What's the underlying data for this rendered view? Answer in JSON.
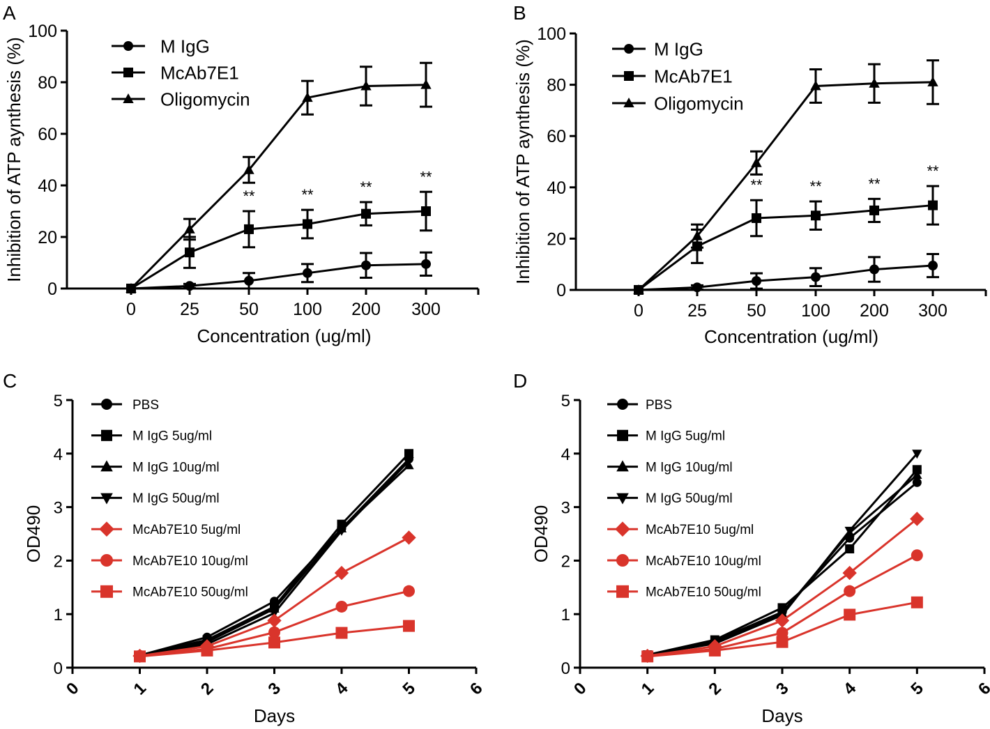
{
  "chart_data": [
    {
      "panel": "A",
      "type": "line",
      "xlabel": "Concentration (ug/ml)",
      "ylabel": "Inhibition of ATP aynthesis (%)",
      "ylim": [
        0,
        100
      ],
      "yticks": [
        0,
        20,
        40,
        60,
        80,
        100
      ],
      "categories": [
        "0",
        "25",
        "50",
        "100",
        "200",
        "300"
      ],
      "legend_position": "top-left",
      "grid": false,
      "series": [
        {
          "name": "M IgG",
          "marker": "circle",
          "color": "#000000",
          "values": [
            0,
            1,
            3,
            6,
            9,
            9.5
          ],
          "errors": [
            0,
            0.8,
            3,
            3.5,
            4.8,
            4.5
          ]
        },
        {
          "name": "McAb7E1",
          "marker": "square",
          "color": "#000000",
          "values": [
            0,
            14,
            23,
            25,
            29,
            30
          ],
          "errors": [
            0,
            6,
            7,
            5.5,
            4.5,
            7.5
          ]
        },
        {
          "name": "Oligomycin",
          "marker": "triangle",
          "color": "#000000",
          "values": [
            0,
            23,
            46,
            74,
            78.5,
            79
          ],
          "errors": [
            0,
            4,
            5,
            6.5,
            7.5,
            8.5
          ]
        }
      ],
      "annotations": [
        {
          "text": "**",
          "category": "50"
        },
        {
          "text": "**",
          "category": "100"
        },
        {
          "text": "**",
          "category": "200"
        },
        {
          "text": "**",
          "category": "300"
        }
      ]
    },
    {
      "panel": "B",
      "type": "line",
      "xlabel": "Concentration (ug/ml)",
      "ylabel": "Inhibition of ATP aynthesis (%)",
      "ylim": [
        0,
        100
      ],
      "yticks": [
        0,
        20,
        40,
        60,
        80,
        100
      ],
      "categories": [
        "0",
        "25",
        "50",
        "100",
        "200",
        "300"
      ],
      "legend_position": "top-left",
      "grid": false,
      "series": [
        {
          "name": "M IgG",
          "marker": "circle",
          "color": "#000000",
          "values": [
            0,
            1,
            3.5,
            5,
            8,
            9.5
          ],
          "errors": [
            0,
            0.8,
            3,
            3.5,
            4.8,
            4.5
          ]
        },
        {
          "name": "McAb7E1",
          "marker": "square",
          "color": "#000000",
          "values": [
            0,
            17,
            28,
            29,
            31,
            33
          ],
          "errors": [
            0,
            6.5,
            7,
            5.5,
            4.5,
            7.5
          ]
        },
        {
          "name": "Oligomycin",
          "marker": "triangle",
          "color": "#000000",
          "values": [
            0,
            21,
            49.5,
            79.5,
            80.5,
            81
          ],
          "errors": [
            0,
            4.5,
            4.5,
            6.5,
            7.5,
            8.5
          ]
        }
      ],
      "annotations": [
        {
          "text": "**",
          "category": "50"
        },
        {
          "text": "**",
          "category": "100"
        },
        {
          "text": "**",
          "category": "200"
        },
        {
          "text": "**",
          "category": "300"
        }
      ]
    },
    {
      "panel": "C",
      "type": "line",
      "xlabel": "Days",
      "ylabel": "OD490",
      "xlim": [
        0,
        6
      ],
      "ylim": [
        0,
        5
      ],
      "xticks": [
        0,
        1,
        2,
        3,
        4,
        5,
        6
      ],
      "yticks": [
        0,
        1,
        2,
        3,
        4,
        5
      ],
      "legend_position": "top-left",
      "grid": false,
      "series": [
        {
          "name": "PBS",
          "marker": "circle",
          "color": "#000000",
          "x": [
            1,
            2,
            3,
            4,
            5
          ],
          "values": [
            0.23,
            0.57,
            1.24,
            2.6,
            3.9
          ]
        },
        {
          "name": "M IgG 5ug/ml",
          "marker": "square",
          "color": "#000000",
          "x": [
            1,
            2,
            3,
            4,
            5
          ],
          "values": [
            0.23,
            0.52,
            1.14,
            2.68,
            4.0
          ]
        },
        {
          "name": "M IgG 10ug/ml",
          "marker": "triangle",
          "color": "#000000",
          "x": [
            1,
            2,
            3,
            4,
            5
          ],
          "values": [
            0.23,
            0.48,
            1.1,
            2.6,
            3.78
          ]
        },
        {
          "name": "M IgG 50ug/ml",
          "marker": "triangle-down",
          "color": "#000000",
          "x": [
            1,
            2,
            3,
            4,
            5
          ],
          "values": [
            0.23,
            0.44,
            1.02,
            2.56,
            3.86
          ]
        },
        {
          "name": "McAb7E10 5ug/ml",
          "marker": "diamond",
          "color": "#d9342b",
          "x": [
            1,
            2,
            3,
            4,
            5
          ],
          "values": [
            0.22,
            0.4,
            0.88,
            1.77,
            2.43
          ]
        },
        {
          "name": "McAb7E10 10ug/ml",
          "marker": "circle",
          "color": "#d9342b",
          "x": [
            1,
            2,
            3,
            4,
            5
          ],
          "values": [
            0.22,
            0.35,
            0.66,
            1.14,
            1.43
          ]
        },
        {
          "name": "McAb7E10 50ug/ml",
          "marker": "square",
          "color": "#d9342b",
          "x": [
            1,
            2,
            3,
            4,
            5
          ],
          "values": [
            0.21,
            0.32,
            0.47,
            0.65,
            0.78
          ]
        }
      ]
    },
    {
      "panel": "D",
      "type": "line",
      "xlabel": "Days",
      "ylabel": "OD490",
      "xlim": [
        0,
        6
      ],
      "ylim": [
        0,
        5
      ],
      "xticks": [
        0,
        1,
        2,
        3,
        4,
        5,
        6
      ],
      "yticks": [
        0,
        1,
        2,
        3,
        4,
        5
      ],
      "legend_position": "top-left",
      "grid": false,
      "series": [
        {
          "name": "PBS",
          "marker": "circle",
          "color": "#000000",
          "x": [
            1,
            2,
            3,
            4,
            5
          ],
          "values": [
            0.24,
            0.5,
            1.04,
            2.42,
            3.46
          ]
        },
        {
          "name": "M IgG 5ug/ml",
          "marker": "square",
          "color": "#000000",
          "x": [
            1,
            2,
            3,
            4,
            5
          ],
          "values": [
            0.24,
            0.52,
            1.12,
            2.22,
            3.7
          ]
        },
        {
          "name": "M IgG 10ug/ml",
          "marker": "triangle",
          "color": "#000000",
          "x": [
            1,
            2,
            3,
            4,
            5
          ],
          "values": [
            0.24,
            0.47,
            1.02,
            2.52,
            3.6
          ]
        },
        {
          "name": "M IgG 50ug/ml",
          "marker": "triangle-down",
          "color": "#000000",
          "x": [
            1,
            2,
            3,
            4,
            5
          ],
          "values": [
            0.24,
            0.45,
            0.98,
            2.56,
            4.0
          ]
        },
        {
          "name": "McAb7E10 5ug/ml",
          "marker": "diamond",
          "color": "#d9342b",
          "x": [
            1,
            2,
            3,
            4,
            5
          ],
          "values": [
            0.22,
            0.4,
            0.88,
            1.77,
            2.78
          ]
        },
        {
          "name": "McAb7E10 10ug/ml",
          "marker": "circle",
          "color": "#d9342b",
          "x": [
            1,
            2,
            3,
            4,
            5
          ],
          "values": [
            0.22,
            0.35,
            0.65,
            1.43,
            2.1
          ]
        },
        {
          "name": "McAb7E10 50ug/ml",
          "marker": "square",
          "color": "#d9342b",
          "x": [
            1,
            2,
            3,
            4,
            5
          ],
          "values": [
            0.21,
            0.32,
            0.48,
            0.99,
            1.22
          ]
        }
      ]
    }
  ]
}
